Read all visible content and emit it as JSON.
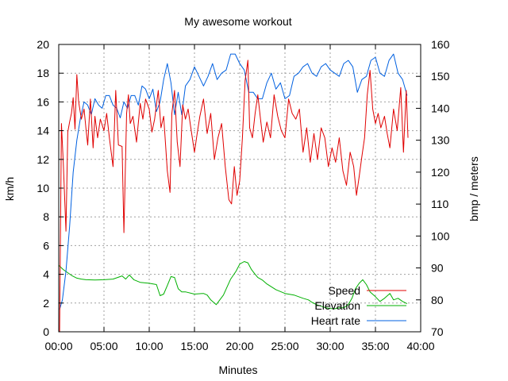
{
  "chart_data": {
    "type": "line",
    "title": "My awesome workout",
    "xlabel": "Minutes",
    "ylabel": "km/h",
    "y2label": "bmp / meters",
    "xlim": [
      0,
      40
    ],
    "ylim": [
      0,
      20
    ],
    "y2lim": [
      70,
      160
    ],
    "x_ticks": [
      "00:00",
      "05:00",
      "10:00",
      "15:00",
      "20:00",
      "25:00",
      "30:00",
      "35:00",
      "40:00"
    ],
    "y_ticks": [
      0,
      2,
      4,
      6,
      8,
      10,
      12,
      14,
      16,
      18,
      20
    ],
    "y2_ticks": [
      70,
      80,
      90,
      100,
      110,
      120,
      130,
      140,
      150,
      160
    ],
    "grid": true,
    "legend_position": "bottom-right",
    "series": [
      {
        "name": "Speed",
        "color": "#e00000",
        "axis": "y",
        "x": [
          0.1,
          0.3,
          0.5,
          0.8,
          1.0,
          1.2,
          1.4,
          1.6,
          1.8,
          2.0,
          2.2,
          2.5,
          2.8,
          3.0,
          3.2,
          3.5,
          3.8,
          4.0,
          4.3,
          4.6,
          5.0,
          5.3,
          5.6,
          6.0,
          6.3,
          6.6,
          7.0,
          7.2,
          7.5,
          7.7,
          7.9,
          8.2,
          8.6,
          9.0,
          9.3,
          9.6,
          10.0,
          10.3,
          10.6,
          11.0,
          11.3,
          11.6,
          12.0,
          12.3,
          12.5,
          12.8,
          13.1,
          13.4,
          13.7,
          14.0,
          14.3,
          14.6,
          15.0,
          15.3,
          15.6,
          16.0,
          16.4,
          16.8,
          17.2,
          17.6,
          18.0,
          18.4,
          18.8,
          19.1,
          19.4,
          19.7,
          20.0,
          20.3,
          20.6,
          20.9,
          21.1,
          21.4,
          21.7,
          22.0,
          22.3,
          22.6,
          23.0,
          23.4,
          23.8,
          24.2,
          24.6,
          25.0,
          25.4,
          25.8,
          26.2,
          26.6,
          27.0,
          27.4,
          27.8,
          28.2,
          28.6,
          29.0,
          29.4,
          29.8,
          30.2,
          30.6,
          31.0,
          31.4,
          31.8,
          32.2,
          32.6,
          32.9,
          33.2,
          33.5,
          33.8,
          34.1,
          34.4,
          34.7,
          35.0,
          35.3,
          35.6,
          36.0,
          36.3,
          36.6,
          37.0,
          37.4,
          37.8,
          38.1,
          38.4,
          38.6
        ],
        "values": [
          0,
          14.5,
          11.8,
          7,
          13.9,
          14.6,
          15.2,
          16.3,
          14.1,
          17.9,
          16,
          14.8,
          15.5,
          14.2,
          13,
          16.2,
          12.8,
          15,
          13.5,
          14.8,
          14,
          15.2,
          13.5,
          11.5,
          16.8,
          13,
          12.9,
          6.9,
          15.2,
          16.5,
          14.5,
          15,
          13.2,
          15.9,
          14.8,
          16.2,
          15.5,
          13.9,
          14.8,
          16.8,
          14.2,
          15,
          11.2,
          9.7,
          15.2,
          16.8,
          13.2,
          11.5,
          15.8,
          14.8,
          15.5,
          14.2,
          12.5,
          13.8,
          15,
          16.2,
          13.8,
          15.2,
          12,
          13.5,
          14.5,
          11.5,
          9.2,
          8.9,
          11.5,
          9.5,
          10.5,
          13.5,
          17.5,
          18.9,
          14.2,
          13.5,
          15.2,
          16.5,
          14.8,
          13.2,
          14.6,
          13.5,
          16.5,
          15,
          14,
          13.5,
          16.2,
          15.2,
          14.8,
          15.5,
          12.5,
          14.2,
          11.8,
          13.8,
          12,
          14.2,
          13.5,
          11.5,
          12.8,
          11.8,
          13.5,
          11.2,
          10.2,
          12.5,
          11.5,
          9.5,
          10.8,
          12.2,
          13.5,
          16.5,
          18.2,
          15.5,
          14.5,
          15.2,
          14.2,
          15,
          13.8,
          12.8,
          15.5,
          14,
          17,
          12.5,
          16.8,
          13.5
        ]
      },
      {
        "name": "Elevation",
        "color": "#00b000",
        "axis": "y2",
        "x": [
          0,
          0.5,
          1.0,
          1.5,
          2.0,
          2.5,
          3.0,
          4.0,
          5.0,
          6.0,
          7.0,
          7.4,
          7.8,
          8.3,
          9.0,
          10.0,
          10.8,
          11.2,
          11.6,
          12.0,
          12.4,
          12.8,
          13.2,
          13.6,
          14.0,
          15.0,
          16.0,
          16.4,
          16.8,
          17.4,
          17.8,
          18.2,
          18.6,
          19.0,
          19.6,
          20.0,
          20.5,
          20.9,
          21.3,
          21.7,
          22.0,
          22.5,
          23.0,
          24.0,
          25.0,
          26.0,
          27.0,
          27.6,
          28.0,
          28.5,
          29.0,
          29.5,
          30.0,
          30.5,
          31.0,
          31.5,
          32.0,
          32.4,
          32.8,
          33.2,
          33.6,
          34.0,
          34.4,
          35.0,
          35.5,
          36.0,
          36.6,
          37.0,
          37.5,
          38.0,
          38.5
        ],
        "values": [
          90.8,
          89.5,
          88.5,
          87.5,
          86.8,
          86.5,
          86.3,
          86.2,
          86.3,
          86.5,
          87.5,
          86.5,
          87.8,
          86.3,
          85.5,
          85.2,
          84.8,
          81.3,
          81.8,
          84.5,
          87.3,
          87,
          83.5,
          82.5,
          82.5,
          81.8,
          82,
          81.5,
          80,
          78.5,
          80,
          81.5,
          84,
          86.5,
          89,
          91.2,
          92,
          91.6,
          89.5,
          88,
          87,
          86.2,
          85,
          83.2,
          82,
          81.5,
          80.5,
          80,
          79.2,
          78.5,
          78,
          77.5,
          77.3,
          77.2,
          77.5,
          77.5,
          78.5,
          80.5,
          83.5,
          85.2,
          86.3,
          84.8,
          82.5,
          81,
          79.5,
          80.5,
          82,
          80,
          80.5,
          79.5,
          78.8
        ]
      },
      {
        "name": "Heart rate",
        "color": "#0060e0",
        "axis": "y2",
        "x": [
          0.1,
          0.4,
          0.8,
          1.2,
          1.6,
          2.0,
          2.4,
          2.8,
          3.2,
          3.6,
          4.0,
          4.4,
          4.8,
          5.2,
          5.6,
          6.0,
          6.4,
          6.8,
          7.2,
          7.6,
          8.0,
          8.4,
          8.8,
          9.2,
          9.6,
          10.0,
          10.4,
          10.8,
          11.2,
          11.6,
          12.0,
          12.4,
          12.8,
          13.2,
          13.6,
          14.0,
          14.5,
          15.0,
          15.5,
          16.0,
          16.5,
          17.0,
          17.5,
          18.0,
          18.5,
          19.0,
          19.5,
          20.0,
          20.5,
          21.0,
          21.5,
          22.0,
          22.5,
          23.0,
          23.5,
          24.0,
          24.5,
          25.0,
          25.5,
          26.0,
          26.5,
          27.0,
          27.5,
          28.0,
          28.5,
          29.0,
          29.5,
          30.0,
          30.5,
          31.0,
          31.5,
          32.0,
          32.5,
          33.0,
          33.5,
          34.0,
          34.5,
          35.0,
          35.5,
          36.0,
          36.5,
          37.0,
          37.5,
          38.0,
          38.5
        ],
        "values": [
          77,
          80,
          89,
          103,
          120,
          130,
          137,
          142,
          141,
          138,
          143,
          141,
          140,
          144,
          144,
          141,
          140,
          137,
          142,
          140,
          144,
          144,
          141,
          147,
          146,
          143,
          146,
          139,
          142,
          149,
          154,
          148,
          138,
          145,
          138,
          147,
          149,
          153,
          150,
          147,
          150,
          154,
          149,
          151,
          152,
          157,
          157,
          154,
          152,
          145,
          145,
          143,
          143,
          148,
          151,
          146,
          148,
          143,
          144,
          150,
          151,
          153,
          154,
          151,
          150,
          153,
          154,
          152,
          151,
          150,
          154,
          155,
          153,
          145,
          149,
          150,
          155,
          156,
          151,
          150,
          155,
          157,
          151,
          149,
          144
        ]
      }
    ]
  }
}
